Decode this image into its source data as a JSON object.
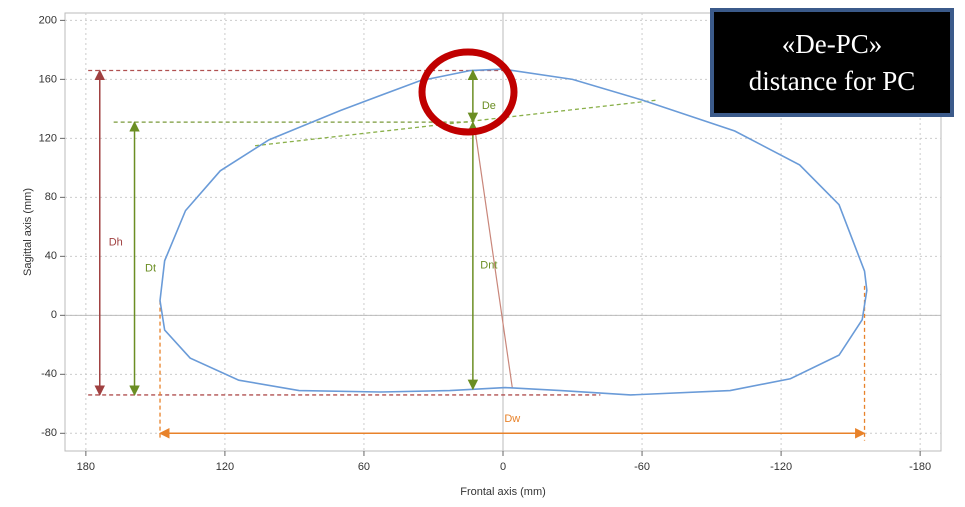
{
  "chart_data": {
    "type": "line",
    "x_label": "Frontal axis (mm)",
    "y_label": "Sagittal axis (mm)",
    "xlim": [
      189,
      -189
    ],
    "ylim": [
      -92,
      205
    ],
    "xticks": [
      180,
      120,
      60,
      0,
      -60,
      -120,
      -180
    ],
    "yticks": [
      200,
      160,
      120,
      80,
      40,
      0,
      -40,
      -80
    ],
    "grid": true,
    "contour": {
      "color": "#6a9bd8",
      "x": [
        0,
        -30,
        -60,
        -100,
        -128,
        -145,
        -156,
        -157,
        -155,
        -145,
        -124,
        -98,
        -55,
        -25,
        -1,
        23,
        53,
        88,
        114,
        135,
        146,
        148,
        146,
        137,
        122,
        101,
        70,
        36,
        14,
        0
      ],
      "y": [
        167,
        160,
        146,
        125,
        102,
        75,
        30,
        17,
        -3,
        -27,
        -43,
        -51,
        -54,
        -51,
        -49,
        -51,
        -52,
        -51,
        -44,
        -29,
        -10,
        10,
        37,
        71,
        98,
        119,
        139,
        159,
        166,
        167
      ]
    },
    "guides": [
      {
        "color": "#b05050",
        "x": [
          179,
          0
        ],
        "y": [
          166,
          166
        ]
      },
      {
        "color": "#b05050",
        "x": [
          179,
          -42
        ],
        "y": [
          -54,
          -54
        ]
      },
      {
        "color": "#7a9a3a",
        "x": [
          168,
          15
        ],
        "y": [
          131,
          131
        ]
      },
      {
        "color": "#8ab04a",
        "x": [
          107,
          -67
        ],
        "y": [
          115,
          146
        ]
      },
      {
        "color": "#e8822a",
        "x": [
          148,
          148
        ],
        "y": [
          10,
          -85
        ]
      },
      {
        "color": "#e8822a",
        "x": [
          -156,
          -156
        ],
        "y": [
          20,
          -85
        ]
      }
    ],
    "measurements": [
      {
        "label": "Dh",
        "color": "#a04040",
        "x": [
          174,
          174
        ],
        "y": [
          166,
          -54
        ]
      },
      {
        "label": "Dt",
        "color": "#6b8e23",
        "x": [
          159,
          159
        ],
        "y": [
          131,
          -54
        ]
      },
      {
        "label": "De",
        "color": "#6b8e23",
        "x": [
          13,
          13
        ],
        "y": [
          166,
          131
        ]
      },
      {
        "label": "Dnt",
        "color": "#6b8e23",
        "x": [
          13,
          13
        ],
        "y": [
          131,
          -50
        ]
      },
      {
        "label": "Dw",
        "color": "#e8822a",
        "x": [
          148,
          -156
        ],
        "y": [
          -80,
          -80
        ]
      }
    ],
    "links": [
      {
        "color": "#c9867a",
        "x": [
          12,
          -4
        ],
        "y": [
          125,
          -49
        ]
      }
    ],
    "callout": [
      "«De-PC»",
      "distance for PC"
    ]
  }
}
